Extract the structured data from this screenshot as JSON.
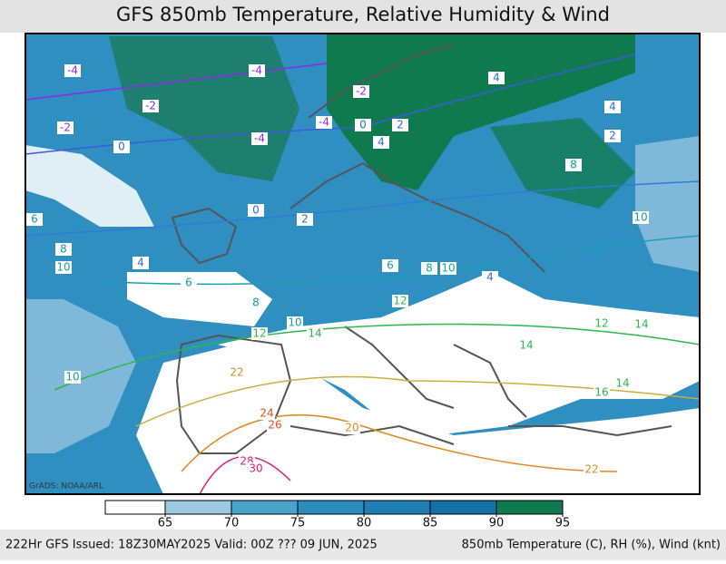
{
  "header": {
    "title": "GFS 850mb Temperature, Relative Humidity & Wind"
  },
  "map": {
    "credit": "GrADS: NOAA/ARL",
    "contour_labels": [
      -4,
      -4,
      -2,
      -2,
      -2,
      -4,
      0,
      2,
      4,
      -4,
      0,
      0,
      2,
      6,
      8,
      10,
      4,
      6,
      8,
      6,
      8,
      10,
      4,
      12,
      10,
      12,
      14,
      10,
      14,
      14,
      12,
      14,
      16,
      20,
      22,
      24,
      26,
      28,
      30,
      22,
      10,
      8,
      4,
      4,
      2
    ]
  },
  "colorbar": {
    "ticks": [
      65,
      70,
      75,
      80,
      85,
      90,
      95
    ],
    "colors": [
      "#ffffff",
      "#9ecae1",
      "#4aa3c8",
      "#2b8cbe",
      "#1f7fb4",
      "#1570a6",
      "#0f7a4e"
    ]
  },
  "footer": {
    "left": "222Hr GFS Issued: 18Z30MAY2025 Valid: 00Z ??? 09 JUN, 2025",
    "right": "850mb Temperature (C), RH (%), Wind (knt)"
  }
}
